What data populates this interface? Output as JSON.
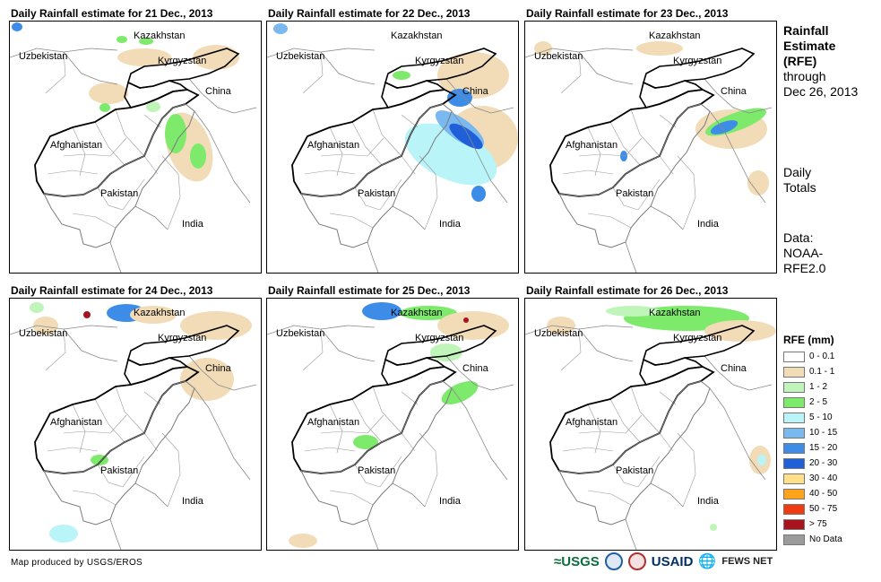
{
  "panels": [
    {
      "title": "Daily Rainfall estimate for 21 Dec., 2013"
    },
    {
      "title": "Daily Rainfall estimate for 22 Dec., 2013"
    },
    {
      "title": "Daily Rainfall estimate for 23 Dec., 2013"
    },
    {
      "title": "Daily Rainfall estimate for 24 Dec., 2013"
    },
    {
      "title": "Daily Rainfall estimate for 25 Dec., 2013"
    },
    {
      "title": "Daily Rainfall estimate for 26 Dec., 2013"
    }
  ],
  "map_labels": {
    "kazakhstan": "Kazakhstan",
    "uzbekistan": "Uzbekistan",
    "kyrgyzstan": "Kyrgyzstan",
    "china": "China",
    "afghanistan": "Afghanistan",
    "pakistan": "Pakistan",
    "india": "India"
  },
  "side": {
    "title_l1": "Rainfall",
    "title_l2": "Estimate",
    "title_l3": "(RFE)",
    "through": "through",
    "date": "Dec 26, 2013",
    "daily1": "Daily",
    "daily2": "Totals",
    "data1": "Data:",
    "data2": "NOAA-",
    "data3": "RFE2.0"
  },
  "legend": {
    "title": "RFE (mm)",
    "items": [
      {
        "label": "0 - 0.1",
        "color": "#ffffff"
      },
      {
        "label": "0.1 - 1",
        "color": "#f2dcb8"
      },
      {
        "label": "1 - 2",
        "color": "#bff5b8"
      },
      {
        "label": "2 - 5",
        "color": "#7dea6c"
      },
      {
        "label": "5 - 10",
        "color": "#b8f4f8"
      },
      {
        "label": "10 - 15",
        "color": "#7ab8f0"
      },
      {
        "label": "15 - 20",
        "color": "#3d8de8"
      },
      {
        "label": "20 - 30",
        "color": "#1f5fd8"
      },
      {
        "label": "30 - 40",
        "color": "#ffe088"
      },
      {
        "label": "40 - 50",
        "color": "#ffa41a"
      },
      {
        "label": "50 - 75",
        "color": "#f03a10"
      },
      {
        "label": "> 75",
        "color": "#a8141e"
      },
      {
        "label": "No Data",
        "color": "#9c9c9c"
      }
    ]
  },
  "footer": {
    "credit": "Map produced by USGS/EROS",
    "usgs": "≈USGS",
    "usaid": "USAID",
    "fews": "FEWS NET"
  }
}
